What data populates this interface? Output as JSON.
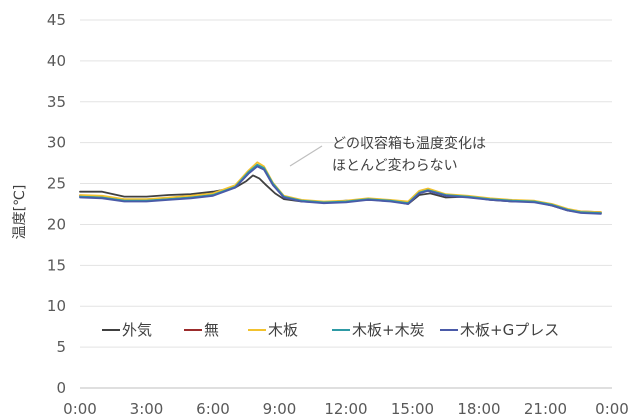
{
  "chart_data": {
    "type": "line",
    "ylabel": "温度[℃]",
    "xlabel": "",
    "ylim": [
      0,
      45
    ],
    "yticks": [
      0,
      5,
      10,
      15,
      20,
      25,
      30,
      35,
      40,
      45
    ],
    "xlim": [
      0,
      24
    ],
    "xticks": [
      0,
      3,
      6,
      9,
      12,
      15,
      18,
      21,
      24
    ],
    "xtick_labels": [
      "0:00",
      "3:00",
      "6:00",
      "9:00",
      "12:00",
      "15:00",
      "18:00",
      "21:00",
      "0:00"
    ],
    "grid": "horizontal",
    "legend_position": "bottom-inside",
    "annotation": {
      "lines": [
        "どの収容箱も温度変化は",
        "ほとんど変わらない"
      ]
    },
    "series": [
      {
        "name": "外気",
        "color": "#404040",
        "points": [
          [
            0,
            24.0
          ],
          [
            1,
            24.0
          ],
          [
            2,
            23.4
          ],
          [
            3,
            23.4
          ],
          [
            4,
            23.6
          ],
          [
            5,
            23.7
          ],
          [
            6,
            24.0
          ],
          [
            7,
            24.5
          ],
          [
            7.5,
            25.3
          ],
          [
            7.8,
            26.0
          ],
          [
            8.1,
            25.6
          ],
          [
            8.4,
            24.8
          ],
          [
            8.8,
            23.8
          ],
          [
            9.2,
            23.1
          ],
          [
            10,
            22.8
          ],
          [
            11,
            22.7
          ],
          [
            12,
            22.9
          ],
          [
            13,
            23.0
          ],
          [
            14,
            22.9
          ],
          [
            14.8,
            22.5
          ],
          [
            15.3,
            23.6
          ],
          [
            15.8,
            23.8
          ],
          [
            16.5,
            23.3
          ],
          [
            17.5,
            23.4
          ],
          [
            18.5,
            23.0
          ],
          [
            19.5,
            22.8
          ],
          [
            20.5,
            22.8
          ],
          [
            21.3,
            22.3
          ],
          [
            22,
            21.7
          ],
          [
            22.6,
            21.5
          ],
          [
            23.5,
            21.4
          ]
        ]
      },
      {
        "name": "無",
        "color": "#9b2c2c",
        "points": [
          [
            0,
            23.5
          ],
          [
            1,
            23.4
          ],
          [
            2,
            23.0
          ],
          [
            3,
            23.0
          ],
          [
            4,
            23.2
          ],
          [
            5,
            23.4
          ],
          [
            6,
            23.7
          ],
          [
            7,
            24.6
          ],
          [
            7.6,
            26.3
          ],
          [
            8.0,
            27.2
          ],
          [
            8.3,
            26.8
          ],
          [
            8.7,
            24.9
          ],
          [
            9.2,
            23.4
          ],
          [
            10,
            22.9
          ],
          [
            11,
            22.7
          ],
          [
            12,
            22.8
          ],
          [
            13,
            23.1
          ],
          [
            14,
            22.9
          ],
          [
            14.8,
            22.7
          ],
          [
            15.3,
            24.0
          ],
          [
            15.7,
            24.3
          ],
          [
            16.5,
            23.6
          ],
          [
            17.5,
            23.4
          ],
          [
            18.5,
            23.1
          ],
          [
            19.5,
            22.9
          ],
          [
            20.5,
            22.8
          ],
          [
            21.3,
            22.4
          ],
          [
            22,
            21.8
          ],
          [
            22.6,
            21.6
          ],
          [
            23.5,
            21.5
          ]
        ]
      },
      {
        "name": "木板",
        "color": "#f2c22e",
        "points": [
          [
            0,
            23.6
          ],
          [
            1,
            23.5
          ],
          [
            2,
            23.1
          ],
          [
            3,
            23.1
          ],
          [
            4,
            23.3
          ],
          [
            5,
            23.5
          ],
          [
            6,
            23.8
          ],
          [
            7,
            24.8
          ],
          [
            7.6,
            26.6
          ],
          [
            8.0,
            27.6
          ],
          [
            8.3,
            27.1
          ],
          [
            8.7,
            25.1
          ],
          [
            9.2,
            23.5
          ],
          [
            10,
            23.0
          ],
          [
            11,
            22.8
          ],
          [
            12,
            22.9
          ],
          [
            13,
            23.2
          ],
          [
            14,
            23.0
          ],
          [
            14.8,
            22.8
          ],
          [
            15.3,
            24.1
          ],
          [
            15.7,
            24.4
          ],
          [
            16.5,
            23.7
          ],
          [
            17.5,
            23.5
          ],
          [
            18.5,
            23.2
          ],
          [
            19.5,
            23.0
          ],
          [
            20.5,
            22.9
          ],
          [
            21.3,
            22.5
          ],
          [
            22,
            21.9
          ],
          [
            22.6,
            21.6
          ],
          [
            23.5,
            21.5
          ]
        ]
      },
      {
        "name": "木板+木炭",
        "color": "#2e9aa5",
        "points": [
          [
            0,
            23.4
          ],
          [
            1,
            23.3
          ],
          [
            2,
            22.9
          ],
          [
            3,
            22.9
          ],
          [
            4,
            23.1
          ],
          [
            5,
            23.3
          ],
          [
            6,
            23.6
          ],
          [
            7,
            24.6
          ],
          [
            7.6,
            26.4
          ],
          [
            8.0,
            27.3
          ],
          [
            8.3,
            26.9
          ],
          [
            8.7,
            25.0
          ],
          [
            9.2,
            23.4
          ],
          [
            10,
            22.9
          ],
          [
            11,
            22.7
          ],
          [
            12,
            22.8
          ],
          [
            13,
            23.1
          ],
          [
            14,
            22.9
          ],
          [
            14.8,
            22.6
          ],
          [
            15.3,
            23.9
          ],
          [
            15.7,
            24.2
          ],
          [
            16.5,
            23.6
          ],
          [
            17.5,
            23.4
          ],
          [
            18.5,
            23.1
          ],
          [
            19.5,
            22.9
          ],
          [
            20.5,
            22.8
          ],
          [
            21.3,
            22.4
          ],
          [
            22,
            21.8
          ],
          [
            22.6,
            21.5
          ],
          [
            23.5,
            21.4
          ]
        ]
      },
      {
        "name": "木板+Gプレス",
        "color": "#4a5aa8",
        "points": [
          [
            0,
            23.3
          ],
          [
            1,
            23.2
          ],
          [
            2,
            22.8
          ],
          [
            3,
            22.8
          ],
          [
            4,
            23.0
          ],
          [
            5,
            23.2
          ],
          [
            6,
            23.5
          ],
          [
            7,
            24.5
          ],
          [
            7.6,
            26.2
          ],
          [
            8.0,
            27.1
          ],
          [
            8.3,
            26.7
          ],
          [
            8.7,
            24.8
          ],
          [
            9.2,
            23.3
          ],
          [
            10,
            22.8
          ],
          [
            11,
            22.6
          ],
          [
            12,
            22.7
          ],
          [
            13,
            23.0
          ],
          [
            14,
            22.8
          ],
          [
            14.8,
            22.5
          ],
          [
            15.3,
            23.8
          ],
          [
            15.7,
            24.1
          ],
          [
            16.5,
            23.5
          ],
          [
            17.5,
            23.3
          ],
          [
            18.5,
            23.0
          ],
          [
            19.5,
            22.8
          ],
          [
            20.5,
            22.7
          ],
          [
            21.3,
            22.3
          ],
          [
            22,
            21.7
          ],
          [
            22.6,
            21.4
          ],
          [
            23.5,
            21.3
          ]
        ]
      }
    ]
  }
}
